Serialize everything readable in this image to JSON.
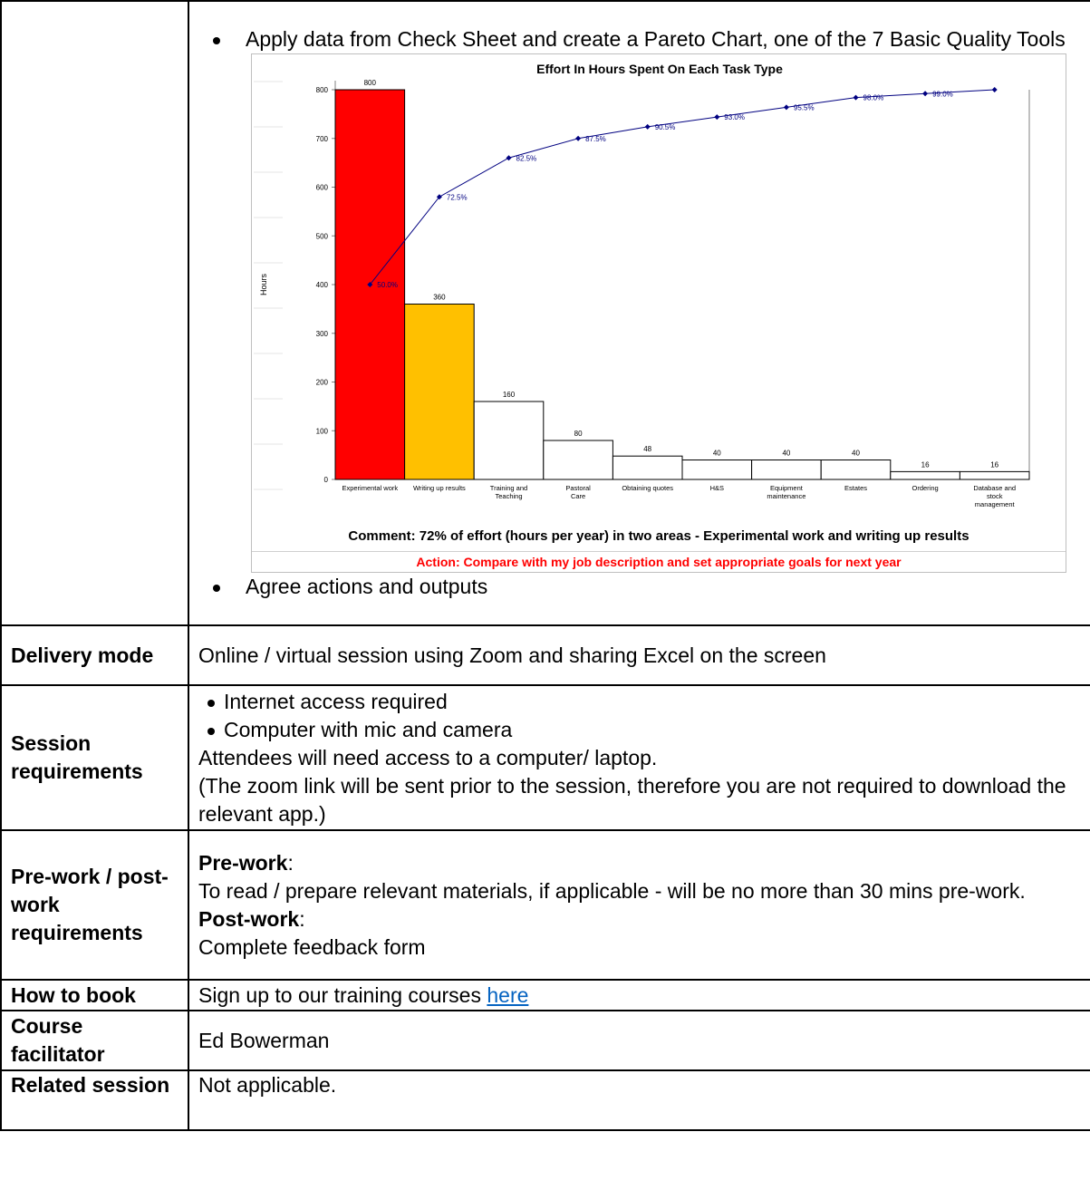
{
  "overview": {
    "bullet_1": "Apply data from Check Sheet and create a Pareto Chart, one of the 7 Basic Quality Tools",
    "bullet_2": "Agree actions and outputs"
  },
  "chart_data": {
    "type": "bar",
    "title": "Effort In Hours Spent On Each Task Type",
    "ylabel": "Hours",
    "xlabel": "",
    "ylim": [
      0,
      800
    ],
    "yticks": [
      0,
      100,
      200,
      300,
      400,
      500,
      600,
      700,
      800
    ],
    "categories": [
      [
        "Experimental work"
      ],
      [
        "Writing up results"
      ],
      [
        "Training and",
        "Teaching"
      ],
      [
        "Pastoral",
        "Care"
      ],
      [
        "Obtaining quotes"
      ],
      [
        "H&S"
      ],
      [
        "Equipment",
        "maintenance"
      ],
      [
        "Estates"
      ],
      [
        "Ordering"
      ],
      [
        "Database and",
        "stock",
        "management"
      ]
    ],
    "values": [
      800,
      360,
      160,
      80,
      48,
      40,
      40,
      40,
      16,
      16
    ],
    "bar_colors": [
      "#ff0000",
      "#ffc000",
      "#ffffff",
      "#ffffff",
      "#ffffff",
      "#ffffff",
      "#ffffff",
      "#ffffff",
      "#ffffff",
      "#ffffff"
    ],
    "cumulative_percent": [
      50.0,
      72.5,
      82.5,
      87.5,
      90.5,
      93.0,
      95.5,
      98.0,
      99.0,
      100.0
    ],
    "cumulative_labels": [
      "50.0%",
      "72.5%",
      "82.5%",
      "87.5%",
      "90.5%",
      "93.0%",
      "95.5%",
      "98.0%",
      "99.0%",
      ""
    ],
    "line_color": "#000080",
    "comment": "Comment: 72% of effort (hours per year) in two areas - Experimental work and writing up results",
    "action": "Action: Compare with my job description and set appropriate goals for next year"
  },
  "delivery": {
    "label": "Delivery mode",
    "text": "Online / virtual session using Zoom and sharing Excel on the screen"
  },
  "session_req": {
    "label": "Session requirements",
    "bullets": [
      "Internet access required",
      "Computer with mic and camera"
    ],
    "line_1": "Attendees will need access to a computer/ laptop.",
    "line_2": "(The zoom link will be sent prior to the session, therefore you are not required to download the relevant app.)"
  },
  "prework": {
    "label": "Pre-work / post-work requirements",
    "pre_heading": "Pre-work",
    "pre_text": "To read / prepare relevant materials, if applicable - will be no more than 30 mins pre-work.",
    "post_heading": "Post-work",
    "post_text": "Complete feedback form"
  },
  "booking": {
    "label": "How to book",
    "text": "Sign up to our training courses ",
    "link_text": "here"
  },
  "facilitator": {
    "label": "Course facilitator",
    "name": "Ed Bowerman"
  },
  "related": {
    "label": "Related session",
    "text": "Not applicable."
  }
}
